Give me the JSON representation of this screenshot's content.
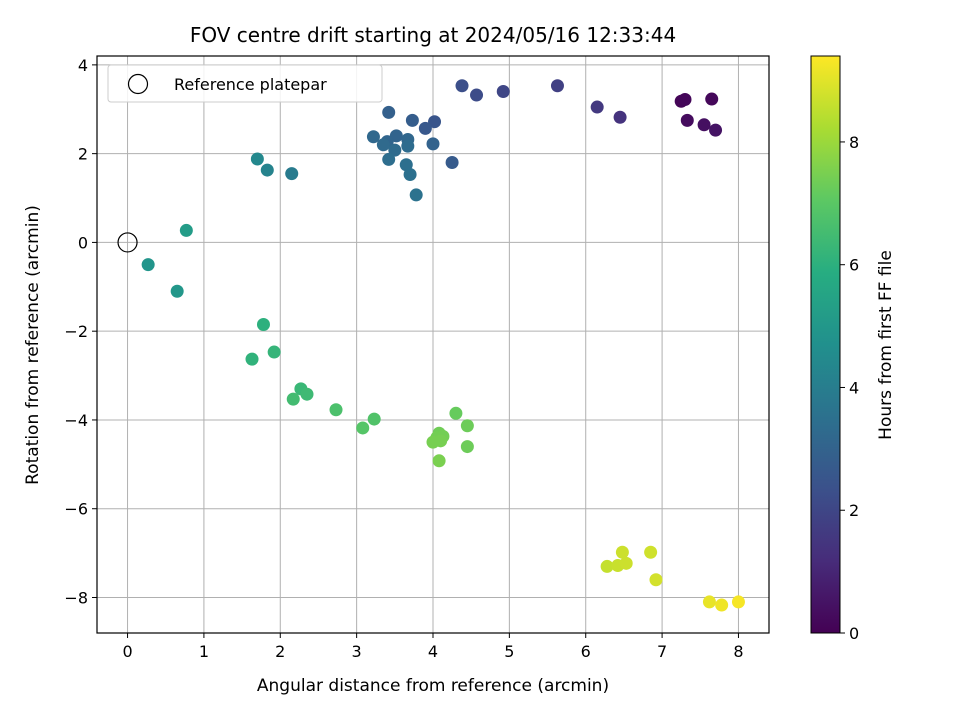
{
  "chart_data": {
    "type": "scatter",
    "title": "FOV centre drift starting at 2024/05/16 12:33:44",
    "xlabel": "Angular distance from reference (arcmin)",
    "ylabel": "Rotation from reference (arcmin)",
    "xlim": [
      -0.4,
      8.4
    ],
    "ylim": [
      -8.8,
      4.2
    ],
    "x_ticks": [
      0,
      1,
      2,
      3,
      4,
      5,
      6,
      7,
      8
    ],
    "y_ticks": [
      -8,
      -6,
      -4,
      -2,
      0,
      2,
      4
    ],
    "grid": true,
    "legend": {
      "placement": "top-left",
      "entries": [
        {
          "label": "Reference platepar",
          "marker": "open-circle",
          "x": 0,
          "y": 0
        }
      ]
    },
    "colorbar": {
      "label": "Hours from first FF file",
      "colormap": "viridis",
      "range": [
        0,
        9.4
      ],
      "ticks": [
        0,
        2,
        4,
        6,
        8
      ]
    },
    "points": [
      {
        "x": 7.25,
        "y": 3.18,
        "h": 0.1
      },
      {
        "x": 7.3,
        "y": 3.22,
        "h": 0.15
      },
      {
        "x": 7.65,
        "y": 3.23,
        "h": 0.2
      },
      {
        "x": 7.33,
        "y": 2.75,
        "h": 0.3
      },
      {
        "x": 7.55,
        "y": 2.65,
        "h": 0.4
      },
      {
        "x": 7.7,
        "y": 2.53,
        "h": 0.5
      },
      {
        "x": 6.45,
        "y": 2.82,
        "h": 1.4
      },
      {
        "x": 6.15,
        "y": 3.05,
        "h": 1.6
      },
      {
        "x": 5.63,
        "y": 3.53,
        "h": 1.8
      },
      {
        "x": 4.92,
        "y": 3.4,
        "h": 2.0
      },
      {
        "x": 4.57,
        "y": 3.32,
        "h": 2.2
      },
      {
        "x": 4.38,
        "y": 3.53,
        "h": 2.3
      },
      {
        "x": 4.02,
        "y": 2.72,
        "h": 2.5
      },
      {
        "x": 3.9,
        "y": 2.57,
        "h": 2.6
      },
      {
        "x": 4.25,
        "y": 1.8,
        "h": 2.7
      },
      {
        "x": 3.73,
        "y": 2.75,
        "h": 2.8
      },
      {
        "x": 3.42,
        "y": 2.93,
        "h": 2.9
      },
      {
        "x": 4.0,
        "y": 2.22,
        "h": 3.0
      },
      {
        "x": 3.52,
        "y": 2.4,
        "h": 3.05
      },
      {
        "x": 3.4,
        "y": 2.27,
        "h": 3.1
      },
      {
        "x": 3.67,
        "y": 2.32,
        "h": 3.15
      },
      {
        "x": 3.22,
        "y": 2.38,
        "h": 3.2
      },
      {
        "x": 3.35,
        "y": 2.2,
        "h": 3.25
      },
      {
        "x": 3.5,
        "y": 2.08,
        "h": 3.3
      },
      {
        "x": 3.67,
        "y": 2.17,
        "h": 3.35
      },
      {
        "x": 3.42,
        "y": 1.87,
        "h": 3.4
      },
      {
        "x": 3.65,
        "y": 1.75,
        "h": 3.45
      },
      {
        "x": 3.7,
        "y": 1.53,
        "h": 3.5
      },
      {
        "x": 3.78,
        "y": 1.07,
        "h": 3.55
      },
      {
        "x": 2.15,
        "y": 1.55,
        "h": 3.9
      },
      {
        "x": 1.83,
        "y": 1.63,
        "h": 4.2
      },
      {
        "x": 1.7,
        "y": 1.88,
        "h": 4.4
      },
      {
        "x": 0.27,
        "y": -0.5,
        "h": 4.9
      },
      {
        "x": 0.65,
        "y": -1.1,
        "h": 5.0
      },
      {
        "x": 0.77,
        "y": 0.27,
        "h": 5.2
      },
      {
        "x": 1.78,
        "y": -1.85,
        "h": 6.0
      },
      {
        "x": 1.63,
        "y": -2.63,
        "h": 6.1
      },
      {
        "x": 1.92,
        "y": -2.47,
        "h": 6.2
      },
      {
        "x": 2.27,
        "y": -3.3,
        "h": 6.3
      },
      {
        "x": 2.35,
        "y": -3.42,
        "h": 6.4
      },
      {
        "x": 2.17,
        "y": -3.53,
        "h": 6.5
      },
      {
        "x": 2.73,
        "y": -3.77,
        "h": 6.7
      },
      {
        "x": 3.23,
        "y": -3.98,
        "h": 6.8
      },
      {
        "x": 3.08,
        "y": -4.18,
        "h": 6.9
      },
      {
        "x": 4.3,
        "y": -3.85,
        "h": 7.2
      },
      {
        "x": 4.45,
        "y": -4.13,
        "h": 7.3
      },
      {
        "x": 4.45,
        "y": -4.6,
        "h": 7.3
      },
      {
        "x": 4.08,
        "y": -4.3,
        "h": 7.35
      },
      {
        "x": 4.05,
        "y": -4.4,
        "h": 7.4
      },
      {
        "x": 4.13,
        "y": -4.37,
        "h": 7.4
      },
      {
        "x": 4.0,
        "y": -4.5,
        "h": 7.45
      },
      {
        "x": 4.1,
        "y": -4.47,
        "h": 7.45
      },
      {
        "x": 4.08,
        "y": -4.92,
        "h": 7.5
      },
      {
        "x": 6.28,
        "y": -7.3,
        "h": 8.6
      },
      {
        "x": 6.42,
        "y": -7.28,
        "h": 8.65
      },
      {
        "x": 6.48,
        "y": -6.98,
        "h": 8.7
      },
      {
        "x": 6.53,
        "y": -7.23,
        "h": 8.7
      },
      {
        "x": 6.85,
        "y": -6.98,
        "h": 8.75
      },
      {
        "x": 6.92,
        "y": -7.6,
        "h": 8.8
      },
      {
        "x": 7.62,
        "y": -8.1,
        "h": 9.1
      },
      {
        "x": 7.78,
        "y": -8.17,
        "h": 9.2
      },
      {
        "x": 8.0,
        "y": -8.1,
        "h": 9.3
      }
    ]
  }
}
